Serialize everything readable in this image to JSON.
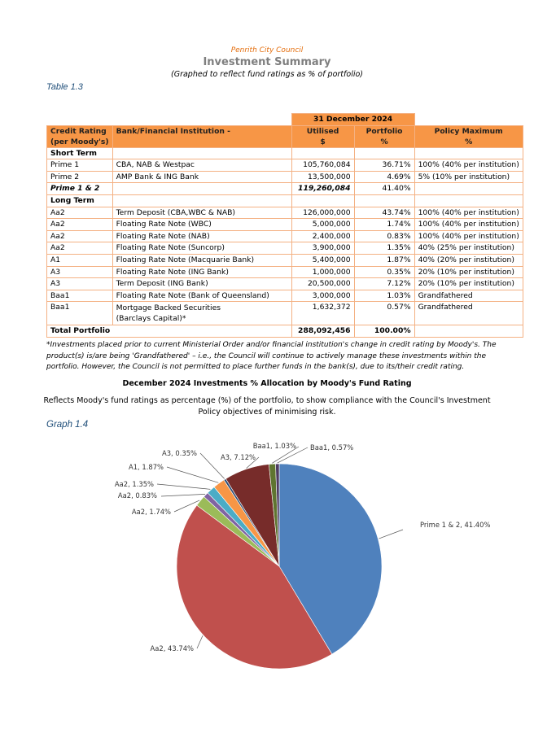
{
  "header": {
    "organisation": "Penrith City Council",
    "title": "Investment Summary",
    "subtitle": "(Graphed to reflect fund ratings as % of portfolio)"
  },
  "table": {
    "caption": "Table 1.3",
    "date_header": "31 December 2024",
    "columns": {
      "rating_line1": "Credit Rating",
      "rating_line2": "(per Moody's)",
      "institution": "Bank/Financial Institution -",
      "utilised_line1": "Utilised",
      "utilised_line2": "$",
      "portfolio_line1": "Portfolio",
      "portfolio_line2": "%",
      "policy_line1": "Policy Maximum",
      "policy_line2": "%"
    },
    "sections": {
      "short_term": "Short Term",
      "long_term": "Long Term"
    },
    "short_term_rows": [
      {
        "rating": "Prime 1",
        "institution": "CBA, NAB & Westpac",
        "utilised": "105,760,084",
        "portfolio": "36.71%",
        "policy": "100% (40% per institution)"
      },
      {
        "rating": "Prime 2",
        "institution": "AMP Bank & ING Bank",
        "utilised": "13,500,000",
        "portfolio": "4.69%",
        "policy": "5% (10% per institution)"
      }
    ],
    "short_term_total": {
      "rating": "Prime 1 & 2",
      "utilised": "119,260,084",
      "portfolio": "41.40%"
    },
    "long_term_rows": [
      {
        "rating": "Aa2",
        "institution": "Term Deposit (CBA,WBC & NAB)",
        "utilised": "126,000,000",
        "portfolio": "43.74%",
        "policy": "100% (40% per institution)"
      },
      {
        "rating": "Aa2",
        "institution": "Floating Rate Note (WBC)",
        "utilised": "5,000,000",
        "portfolio": "1.74%",
        "policy": "100% (40% per institution)"
      },
      {
        "rating": "Aa2",
        "institution": "Floating Rate Note (NAB)",
        "utilised": "2,400,000",
        "portfolio": "0.83%",
        "policy": "100% (40% per institution)"
      },
      {
        "rating": "Aa2",
        "institution": "Floating Rate Note (Suncorp)",
        "utilised": "3,900,000",
        "portfolio": "1.35%",
        "policy": "40% (25% per institution)"
      },
      {
        "rating": "A1",
        "institution": "Floating Rate Note (Macquarie Bank)",
        "utilised": "5,400,000",
        "portfolio": "1.87%",
        "policy": "40% (20% per institution)"
      },
      {
        "rating": "A3",
        "institution": "Floating Rate Note (ING Bank)",
        "utilised": "1,000,000",
        "portfolio": "0.35%",
        "policy": "20% (10% per institution)"
      },
      {
        "rating": "A3",
        "institution": "Term Deposit (ING Bank)",
        "utilised": "20,500,000",
        "portfolio": "7.12%",
        "policy": "20% (10% per institution)"
      },
      {
        "rating": "Baa1",
        "institution": "Floating Rate Note (Bank of Queensland)",
        "utilised": "3,000,000",
        "portfolio": "1.03%",
        "policy": "Grandfathered"
      }
    ],
    "last_row": {
      "rating": "Baa1",
      "institution_line1": "Mortgage Backed Securities",
      "institution_line2": "(Barclays Capital)*",
      "utilised": "1,632,372",
      "portfolio": "0.57%",
      "policy": "Grandfathered"
    },
    "total": {
      "label": "Total Portfolio",
      "utilised": "288,092,456",
      "portfolio": "100.00%"
    }
  },
  "footnote": "*Investments placed prior to current Ministerial Order and/or financial institution's change in credit rating by Moody's. The product(s) is/are being 'Grandfathered' – i.e., the Council will continue to actively manage these investments within the portfolio. However, the Council is not permitted to place further funds in the bank(s), due to its/their credit rating.",
  "chart_section": {
    "title": "December 2024 Investments % Allocation by Moody's Fund Rating",
    "description": "Reflects Moody's fund ratings as percentage (%) of the portfolio, to show compliance with the Council's Investment Policy objectives of minimising risk.",
    "caption": "Graph 1.4"
  },
  "chart_data": {
    "type": "pie",
    "title": "",
    "slices": [
      {
        "label": "Prime 1 & 2",
        "value": 41.4,
        "display": "Prime 1 & 2, 41.40%",
        "color": "#4f81bd"
      },
      {
        "label": "Aa2",
        "value": 43.74,
        "display": "Aa2, 43.74%",
        "color": "#c0504d"
      },
      {
        "label": "Aa2",
        "value": 1.74,
        "display": "Aa2, 1.74%",
        "color": "#9bbb59"
      },
      {
        "label": "Aa2",
        "value": 0.83,
        "display": "Aa2, 0.83%",
        "color": "#8064a2"
      },
      {
        "label": "Aa2",
        "value": 1.35,
        "display": "Aa2, 1.35%",
        "color": "#4bacc6"
      },
      {
        "label": "A1",
        "value": 1.87,
        "display": "A1, 1.87%",
        "color": "#f79646"
      },
      {
        "label": "A3",
        "value": 0.35,
        "display": "A3, 0.35%",
        "color": "#2c4d75"
      },
      {
        "label": "A3",
        "value": 7.12,
        "display": "A3, 7.12%",
        "color": "#772c2a"
      },
      {
        "label": "Baa1",
        "value": 1.03,
        "display": "Baa1, 1.03%",
        "color": "#5f7530"
      },
      {
        "label": "Baa1",
        "value": 0.57,
        "display": "Baa1, 0.57%",
        "color": "#4d3b62"
      }
    ],
    "legend": "none",
    "labels": "outside with leader lines"
  }
}
